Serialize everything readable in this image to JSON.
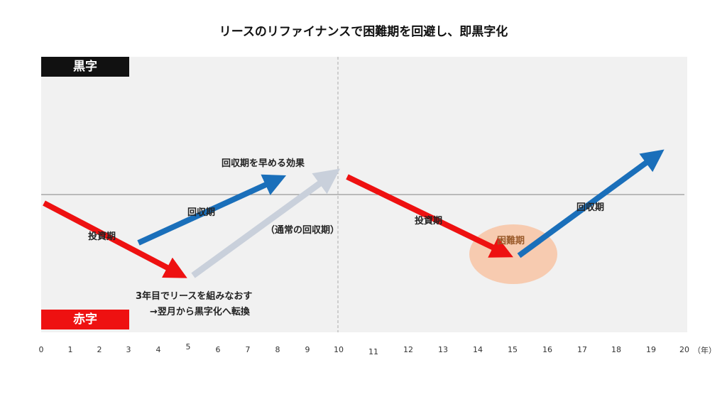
{
  "title": "リースのリファイナンスで困難期を回避し、即黒字化",
  "badges": {
    "profit": "黒字",
    "loss": "赤字"
  },
  "labels": {
    "investment_1": "投資期",
    "recovery_1": "回収期",
    "speedup_effect": "回収期を早める効果",
    "normal_recovery": "（通常の回収期）",
    "note_line1": "3年目でリースを組みなおす",
    "note_line2": "→翌月から黒字化へ転換",
    "investment_2": "投資期",
    "difficulty": "困難期",
    "recovery_2": "回収期"
  },
  "axis": {
    "unit": "（年）",
    "ticks": [
      "0",
      "1",
      "2",
      "3",
      "4",
      "5",
      "6",
      "7",
      "8",
      "9",
      "10",
      "11",
      "12",
      "13",
      "14",
      "15",
      "16",
      "17",
      "18",
      "19",
      "20"
    ]
  },
  "colors": {
    "investment": "#ee1111",
    "recovery": "#1a6fba",
    "normal": "#c9d0db",
    "difficulty_zone": "#f7c6a8",
    "difficulty_text": "#9a5a2a"
  }
}
